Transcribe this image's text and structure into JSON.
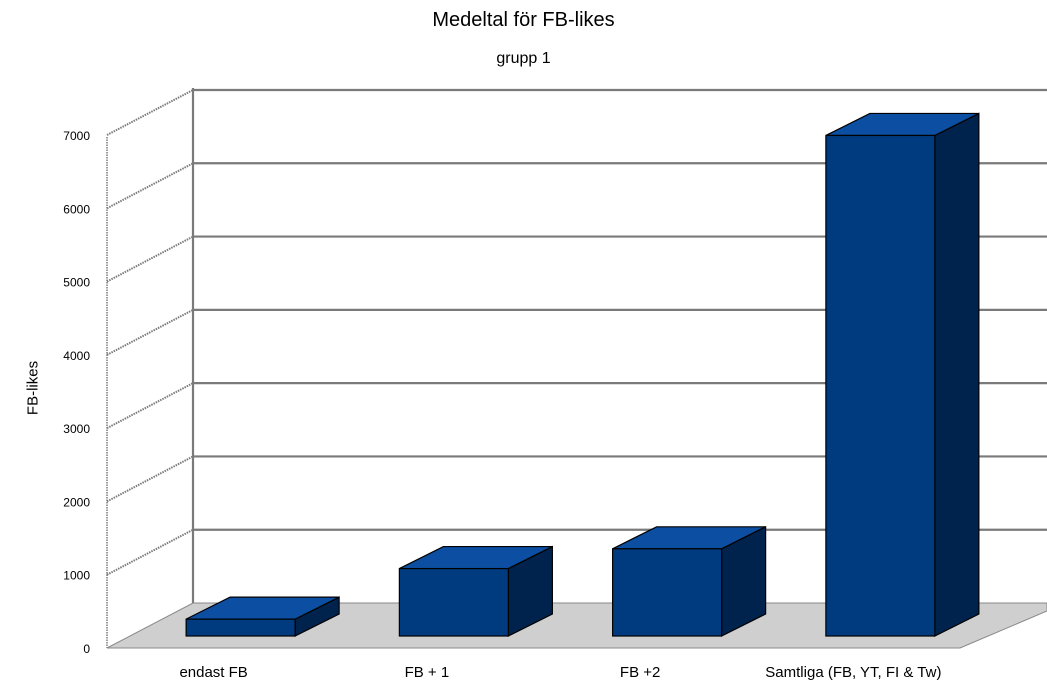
{
  "chart_data": {
    "type": "bar",
    "title": "Medeltal för FB-likes",
    "subtitle": "grupp 1",
    "xlabel": "",
    "ylabel": "FB-likes",
    "categories": [
      "endast FB",
      "FB + 1",
      "FB +2",
      "Samtliga (FB, YT, FI & Tw)"
    ],
    "series": [
      {
        "values": [
          230,
          920,
          1190,
          6830
        ]
      }
    ],
    "ylim": [
      0,
      7000
    ],
    "yticks": [
      0,
      1000,
      2000,
      3000,
      4000,
      5000,
      6000,
      7000
    ],
    "grid": true,
    "three_d": true,
    "legend": "none",
    "colors": {
      "bar_front": "#003b80",
      "bar_top": "#0c4ea1",
      "bar_side": "#00234d",
      "floor": "#cfcfcf",
      "wall_grid": "#7a7a7a"
    }
  }
}
